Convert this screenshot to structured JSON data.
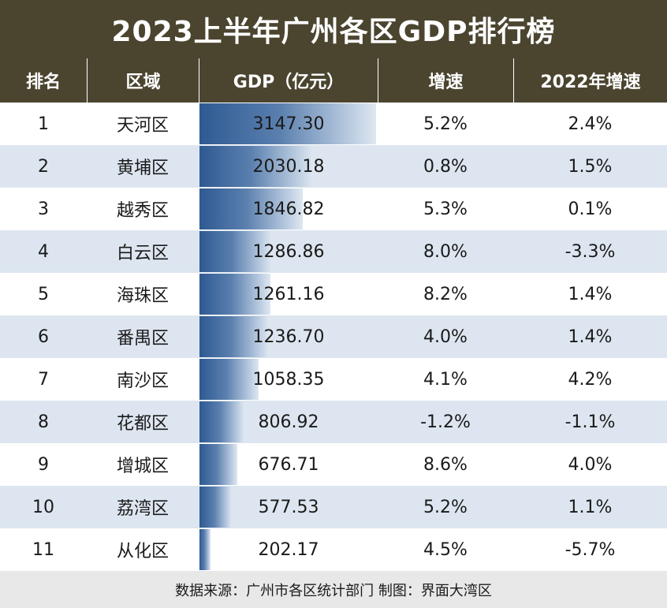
{
  "title": "2023上半年广州各区GDP排行榜",
  "headers": {
    "rank": "排名",
    "district": "区域",
    "gdp": "GDP（亿元）",
    "growth": "增速",
    "growth2022": "2022年增速"
  },
  "rows": [
    {
      "rank": "1",
      "district": "天河区",
      "gdp": "3147.30",
      "growth": "5.2%",
      "growth2022": "2.4%"
    },
    {
      "rank": "2",
      "district": "黄埔区",
      "gdp": "2030.18",
      "growth": "0.8%",
      "growth2022": "1.5%"
    },
    {
      "rank": "3",
      "district": "越秀区",
      "gdp": "1846.82",
      "growth": "5.3%",
      "growth2022": "0.1%"
    },
    {
      "rank": "4",
      "district": "白云区",
      "gdp": "1286.86",
      "growth": "8.0%",
      "growth2022": "-3.3%"
    },
    {
      "rank": "5",
      "district": "海珠区",
      "gdp": "1261.16",
      "growth": "8.2%",
      "growth2022": "1.4%"
    },
    {
      "rank": "6",
      "district": "番禺区",
      "gdp": "1236.70",
      "growth": "4.0%",
      "growth2022": "1.4%"
    },
    {
      "rank": "7",
      "district": "南沙区",
      "gdp": "1058.35",
      "growth": "4.1%",
      "growth2022": "4.2%"
    },
    {
      "rank": "8",
      "district": "花都区",
      "gdp": "806.92",
      "growth": "-1.2%",
      "growth2022": "-1.1%"
    },
    {
      "rank": "9",
      "district": "增城区",
      "gdp": "676.71",
      "growth": "8.6%",
      "growth2022": "4.0%"
    },
    {
      "rank": "10",
      "district": "荔湾区",
      "gdp": "577.53",
      "growth": "5.2%",
      "growth2022": "1.1%"
    },
    {
      "rank": "11",
      "district": "从化区",
      "gdp": "202.17",
      "growth": "4.5%",
      "growth2022": "-5.7%"
    }
  ],
  "footer": "数据来源：广州市各区统计部门  制图：界面大湾区",
  "chart_data": {
    "type": "table",
    "title": "2023上半年广州各区GDP排行榜",
    "categories": [
      "天河区",
      "黄埔区",
      "越秀区",
      "白云区",
      "海珠区",
      "番禺区",
      "南沙区",
      "花都区",
      "增城区",
      "荔湾区",
      "从化区"
    ],
    "series": [
      {
        "name": "GDP（亿元）",
        "values": [
          3147.3,
          2030.18,
          1846.82,
          1286.86,
          1261.16,
          1236.7,
          1058.35,
          806.92,
          676.71,
          577.53,
          202.17
        ]
      },
      {
        "name": "增速",
        "values": [
          5.2,
          0.8,
          5.3,
          8.0,
          8.2,
          4.0,
          4.1,
          -1.2,
          8.6,
          5.2,
          4.5
        ]
      },
      {
        "name": "2022年增速",
        "values": [
          2.4,
          1.5,
          0.1,
          -3.3,
          1.4,
          1.4,
          4.2,
          -1.1,
          4.0,
          1.1,
          -5.7
        ]
      }
    ]
  }
}
